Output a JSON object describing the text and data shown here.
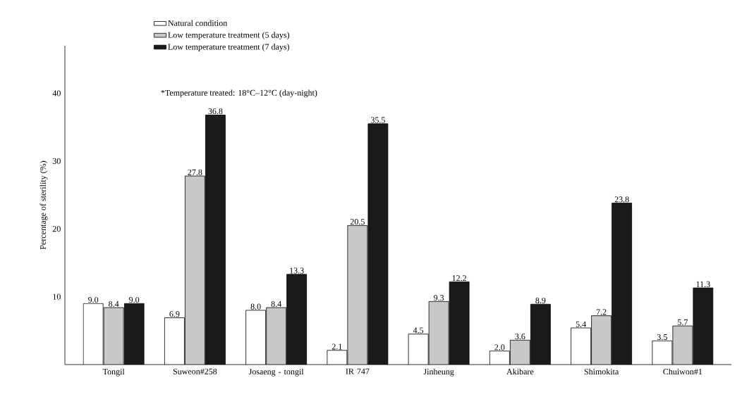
{
  "chart_data": {
    "type": "bar",
    "categories": [
      "Tongil",
      "Suweon#258",
      "Josaeng - tongil",
      "IR 747",
      "Jinheung",
      "Akibare",
      "Shimokita",
      "Chuiwon#1"
    ],
    "series": [
      {
        "name": "Natural condition",
        "color": "#ffffff",
        "values": [
          9.0,
          6.9,
          8.0,
          2.1,
          4.5,
          2.0,
          5.4,
          3.5
        ],
        "value_labels": [
          "9.0",
          "6.9",
          "8.0",
          "2.1",
          "4.5",
          "2.0",
          "5.4",
          "3.5"
        ]
      },
      {
        "name": "Low temperature treatment (5 days)",
        "color": "#c8c8c8",
        "values": [
          8.4,
          27.8,
          8.4,
          20.5,
          9.3,
          3.6,
          7.2,
          5.7
        ],
        "value_labels": [
          "8.4",
          "27.8",
          "8.4",
          "20.5",
          "9.3",
          "3.6",
          "7.2",
          "5.7"
        ]
      },
      {
        "name": "Low temperature treatment (7 days)",
        "color": "#1a1a1a",
        "values": [
          9.0,
          36.8,
          13.3,
          35.5,
          12.2,
          8.9,
          23.8,
          11.3
        ],
        "value_labels": [
          "9.0",
          "36.8",
          "13.3",
          "35.5",
          "12.2",
          "8.9",
          "23.8",
          "11.3"
        ]
      }
    ],
    "ylabel": "Percentage of sterility (%)",
    "ylim": [
      0,
      47
    ],
    "yticks": [
      10,
      20,
      30,
      40
    ],
    "annotations": [
      "*Temperature treated: 18°C–12°C (day-night)"
    ],
    "legend": "top left",
    "grid": false
  }
}
